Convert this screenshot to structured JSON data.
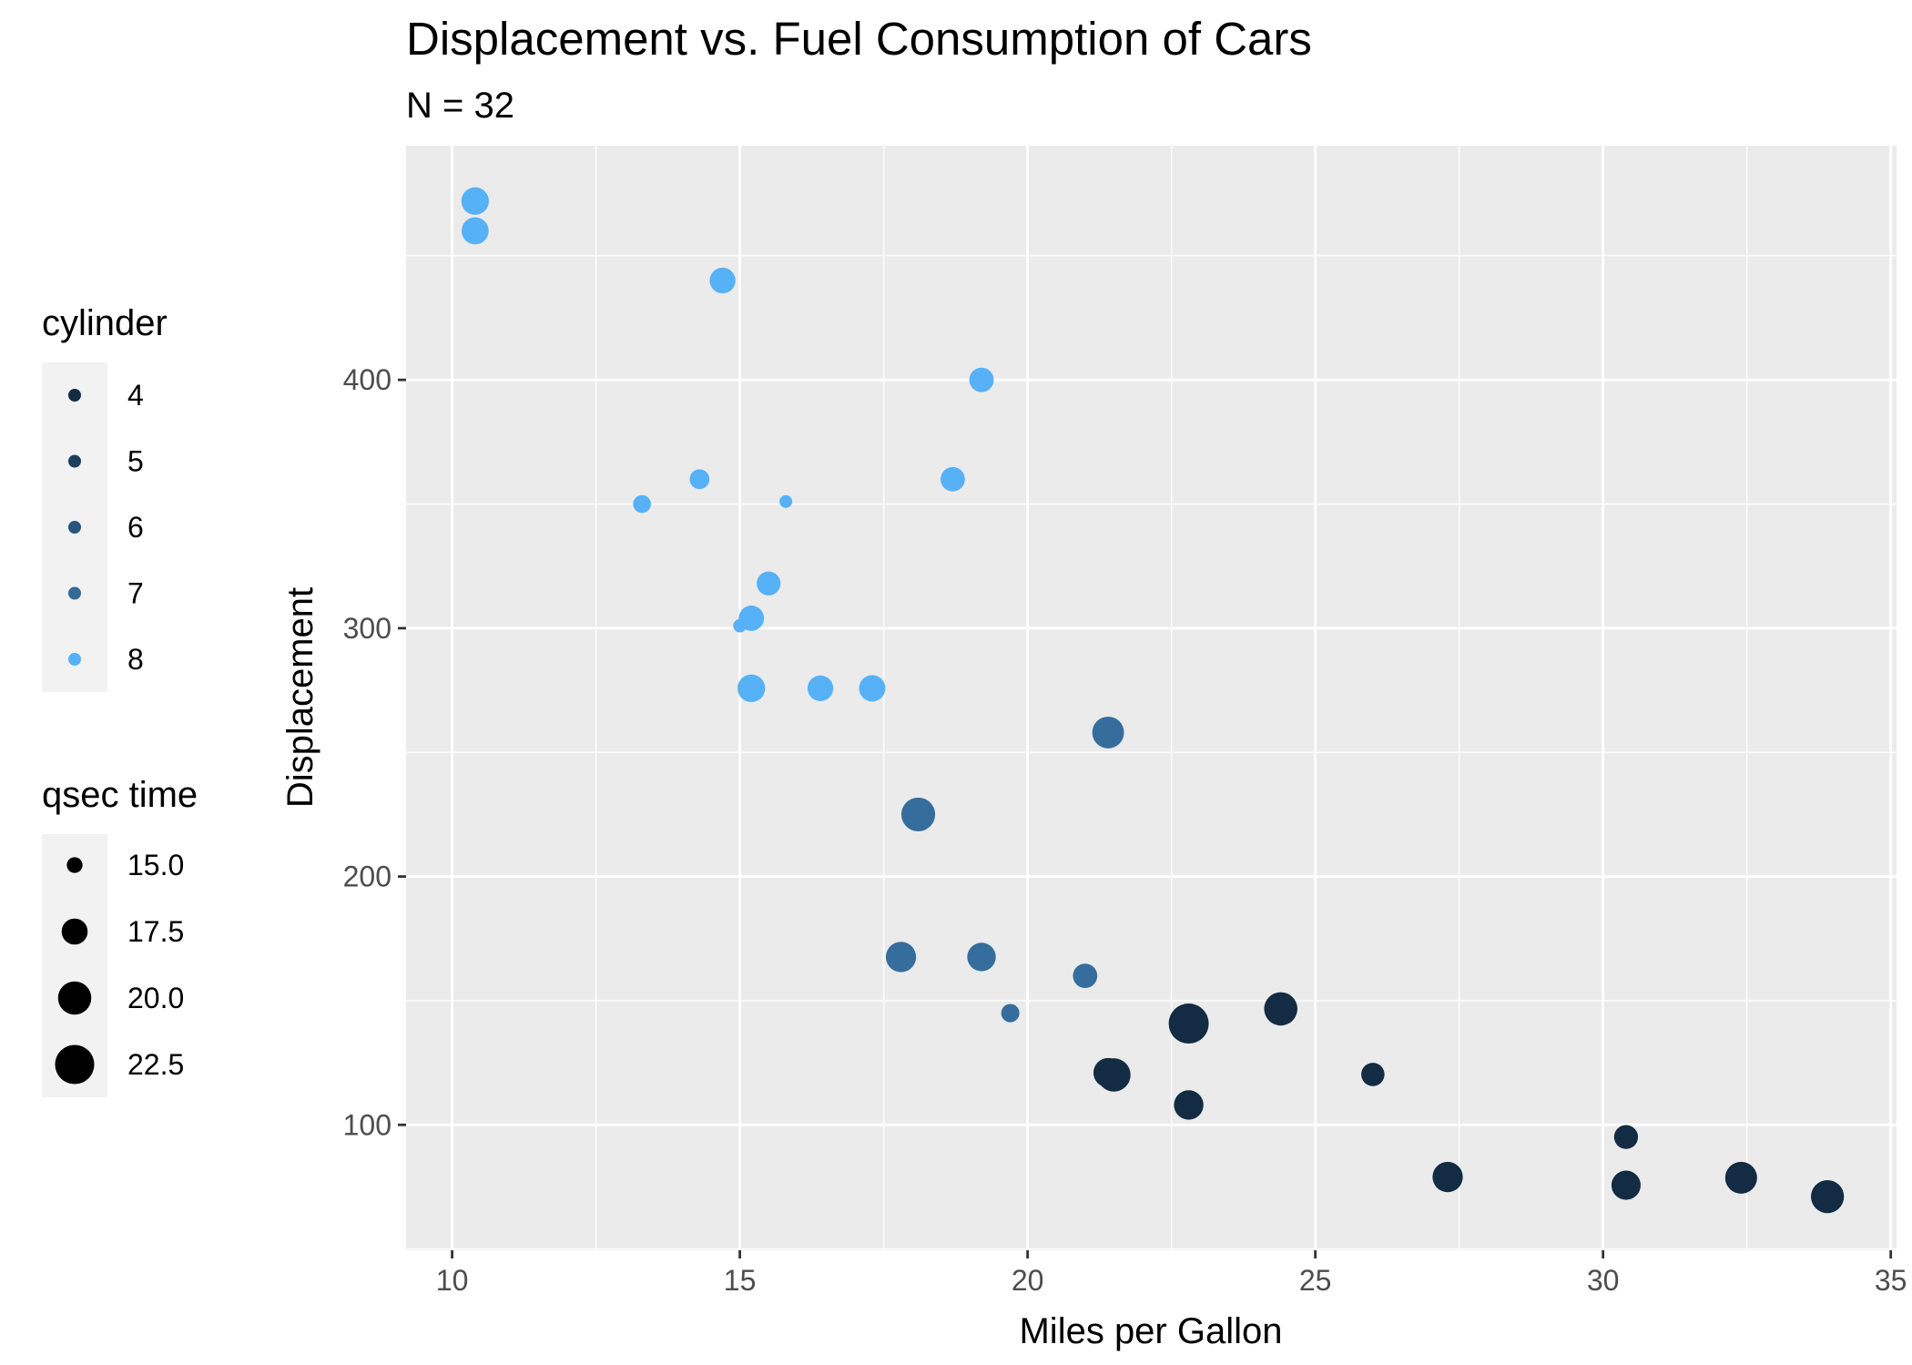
{
  "chart_data": {
    "type": "scatter",
    "title": "Displacement vs. Fuel Consumption of Cars",
    "subtitle": "N = 32",
    "xlabel": "Miles per Gallon",
    "ylabel": "Displacement",
    "xlim": [
      9.2,
      35.1
    ],
    "ylim": [
      49.5,
      494.3
    ],
    "x_ticks": [
      10,
      15,
      20,
      25,
      30,
      35
    ],
    "y_ticks": [
      100,
      200,
      300,
      400
    ],
    "grid": true,
    "background": "#EBEBEB",
    "legend_position": "left",
    "color_legend": {
      "title": "cylinder",
      "labels": [
        "4",
        "5",
        "6",
        "7",
        "8"
      ],
      "colors": [
        "#132B43",
        "#1D3F5E",
        "#28557C",
        "#336A98",
        "#56B1F7"
      ]
    },
    "size_legend": {
      "title": "qsec time",
      "labels": [
        "15.0",
        "17.5",
        "20.0",
        "22.5"
      ],
      "values": [
        15.0,
        17.5,
        20.0,
        22.5
      ]
    },
    "size_range": [
      14.5,
      22.9
    ],
    "points": [
      {
        "x": 21.0,
        "y": 160.0,
        "cyl": 6,
        "qsec": 16.46
      },
      {
        "x": 21.0,
        "y": 160.0,
        "cyl": 6,
        "qsec": 17.02
      },
      {
        "x": 22.8,
        "y": 108.0,
        "cyl": 4,
        "qsec": 18.61
      },
      {
        "x": 21.4,
        "y": 258.0,
        "cyl": 6,
        "qsec": 19.44
      },
      {
        "x": 18.7,
        "y": 360.0,
        "cyl": 8,
        "qsec": 17.02
      },
      {
        "x": 18.1,
        "y": 225.0,
        "cyl": 6,
        "qsec": 20.22
      },
      {
        "x": 14.3,
        "y": 360.0,
        "cyl": 8,
        "qsec": 15.84
      },
      {
        "x": 24.4,
        "y": 146.7,
        "cyl": 4,
        "qsec": 20.0
      },
      {
        "x": 22.8,
        "y": 140.8,
        "cyl": 4,
        "qsec": 22.9
      },
      {
        "x": 19.2,
        "y": 167.6,
        "cyl": 6,
        "qsec": 18.3
      },
      {
        "x": 17.8,
        "y": 167.6,
        "cyl": 6,
        "qsec": 18.9
      },
      {
        "x": 16.4,
        "y": 275.8,
        "cyl": 8,
        "qsec": 17.4
      },
      {
        "x": 17.3,
        "y": 275.8,
        "cyl": 8,
        "qsec": 17.6
      },
      {
        "x": 15.2,
        "y": 275.8,
        "cyl": 8,
        "qsec": 18.0
      },
      {
        "x": 10.4,
        "y": 472.0,
        "cyl": 8,
        "qsec": 17.98
      },
      {
        "x": 10.4,
        "y": 460.0,
        "cyl": 8,
        "qsec": 17.82
      },
      {
        "x": 14.7,
        "y": 440.0,
        "cyl": 8,
        "qsec": 17.42
      },
      {
        "x": 32.4,
        "y": 78.7,
        "cyl": 4,
        "qsec": 19.47
      },
      {
        "x": 30.4,
        "y": 75.7,
        "cyl": 4,
        "qsec": 18.52
      },
      {
        "x": 33.9,
        "y": 71.1,
        "cyl": 4,
        "qsec": 19.9
      },
      {
        "x": 21.5,
        "y": 120.1,
        "cyl": 4,
        "qsec": 20.01
      },
      {
        "x": 15.5,
        "y": 318.0,
        "cyl": 8,
        "qsec": 16.87
      },
      {
        "x": 15.2,
        "y": 304.0,
        "cyl": 8,
        "qsec": 17.3
      },
      {
        "x": 13.3,
        "y": 350.0,
        "cyl": 8,
        "qsec": 15.41
      },
      {
        "x": 19.2,
        "y": 400.0,
        "cyl": 8,
        "qsec": 17.05
      },
      {
        "x": 27.3,
        "y": 79.0,
        "cyl": 4,
        "qsec": 18.9
      },
      {
        "x": 26.0,
        "y": 120.3,
        "cyl": 4,
        "qsec": 16.7
      },
      {
        "x": 30.4,
        "y": 95.1,
        "cyl": 4,
        "qsec": 16.9
      },
      {
        "x": 15.8,
        "y": 351.0,
        "cyl": 8,
        "qsec": 14.5
      },
      {
        "x": 19.7,
        "y": 145.0,
        "cyl": 6,
        "qsec": 15.5
      },
      {
        "x": 15.0,
        "y": 301.0,
        "cyl": 8,
        "qsec": 14.6
      },
      {
        "x": 21.4,
        "y": 121.0,
        "cyl": 4,
        "qsec": 18.6
      }
    ]
  }
}
